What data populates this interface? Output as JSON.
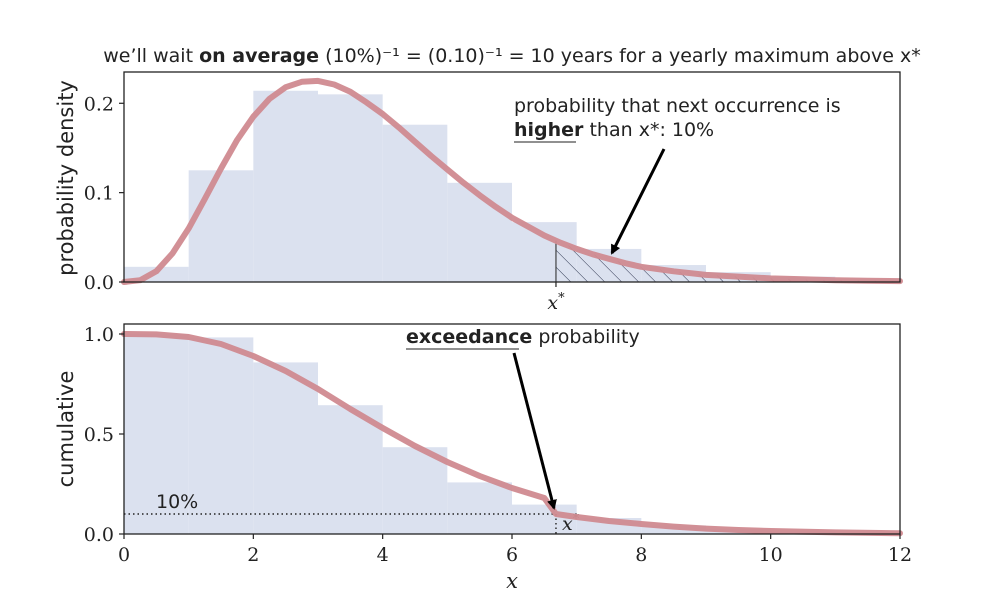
{
  "chart_data": [
    {
      "type": "bar",
      "panel": "top",
      "title_parts": {
        "pre": "we’ll wait ",
        "bold": "on average",
        "post": " (10%)⁻¹ = (0.10)⁻¹ = 10 years for a yearly maximum above x*"
      },
      "ylabel": "probability density",
      "xlim": [
        0,
        12
      ],
      "ylim": [
        0,
        0.235
      ],
      "yticks": [
        0.0,
        0.1,
        0.2
      ],
      "ytick_labels": [
        "0.0",
        "0.1",
        "0.2"
      ],
      "x_marker_label": "x*",
      "threshold_x": 6.68,
      "histogram": {
        "bin_edges": [
          0,
          1,
          2,
          3,
          4,
          5,
          6,
          7,
          8,
          9,
          10,
          11,
          12
        ],
        "values": [
          0.017,
          0.125,
          0.214,
          0.21,
          0.176,
          0.111,
          0.067,
          0.037,
          0.019,
          0.011,
          0.006,
          0.003
        ]
      },
      "curve": {
        "x": [
          0,
          0.25,
          0.5,
          0.75,
          1,
          1.25,
          1.5,
          1.75,
          2,
          2.25,
          2.5,
          2.75,
          3,
          3.25,
          3.5,
          3.75,
          4,
          4.25,
          4.5,
          4.75,
          5,
          5.25,
          5.5,
          5.75,
          6,
          6.25,
          6.5,
          6.75,
          7,
          7.25,
          7.5,
          7.75,
          8,
          8.5,
          9,
          9.5,
          10,
          10.5,
          11,
          11.5,
          12
        ],
        "y": [
          0,
          0.002,
          0.012,
          0.032,
          0.06,
          0.093,
          0.127,
          0.159,
          0.185,
          0.205,
          0.218,
          0.224,
          0.225,
          0.221,
          0.213,
          0.201,
          0.188,
          0.173,
          0.157,
          0.141,
          0.126,
          0.111,
          0.097,
          0.084,
          0.072,
          0.062,
          0.052,
          0.044,
          0.037,
          0.031,
          0.026,
          0.021,
          0.017,
          0.012,
          0.008,
          0.006,
          0.004,
          0.003,
          0.002,
          0.0015,
          0.001
        ]
      },
      "annotation": {
        "line1": "probability that next occurrence is",
        "line2_bold": "higher",
        "line2_post": " than x*: 10%",
        "arrow_target": [
          7.5,
          0.028
        ]
      },
      "colors": {
        "bars": "#dbe1ef",
        "curve": "#d08a90",
        "hatch": "#2d3550"
      }
    },
    {
      "type": "bar",
      "panel": "bottom",
      "ylabel": "cumulative",
      "xlabel": "x",
      "xlim": [
        0,
        12
      ],
      "ylim": [
        0,
        1.05
      ],
      "xticks": [
        0,
        2,
        4,
        6,
        8,
        10,
        12
      ],
      "xtick_labels": [
        "0",
        "2",
        "4",
        "6",
        "8",
        "10",
        "12"
      ],
      "yticks": [
        0.0,
        0.5,
        1.0
      ],
      "ytick_labels": [
        "0.0",
        "0.5",
        "1.0"
      ],
      "threshold_x": 6.68,
      "threshold_y": 0.1,
      "percent_label": "10%",
      "x_marker_label": "x*",
      "histogram": {
        "bin_edges": [
          0,
          1,
          2,
          3,
          4,
          5,
          6,
          7,
          8,
          9,
          10,
          11,
          12
        ],
        "values": [
          1.0,
          0.983,
          0.858,
          0.644,
          0.434,
          0.258,
          0.147,
          0.08,
          0.043,
          0.024,
          0.013,
          0.007
        ]
      },
      "curve": {
        "x": [
          0,
          0.5,
          1,
          1.5,
          2,
          2.5,
          3,
          3.5,
          4,
          4.5,
          5,
          5.5,
          6,
          6.5,
          6.68,
          7,
          7.5,
          8,
          8.5,
          9,
          9.5,
          10,
          11,
          12
        ],
        "y": [
          1.0,
          0.998,
          0.985,
          0.95,
          0.89,
          0.815,
          0.725,
          0.625,
          0.53,
          0.44,
          0.36,
          0.29,
          0.23,
          0.18,
          0.1,
          0.085,
          0.065,
          0.05,
          0.037,
          0.027,
          0.02,
          0.015,
          0.008,
          0.004
        ]
      },
      "annotation": {
        "bold": "exceedance",
        "post": " probability",
        "arrow_target": [
          6.68,
          0.1
        ]
      },
      "colors": {
        "bars": "#dbe1ef",
        "curve": "#d08a90"
      }
    }
  ]
}
